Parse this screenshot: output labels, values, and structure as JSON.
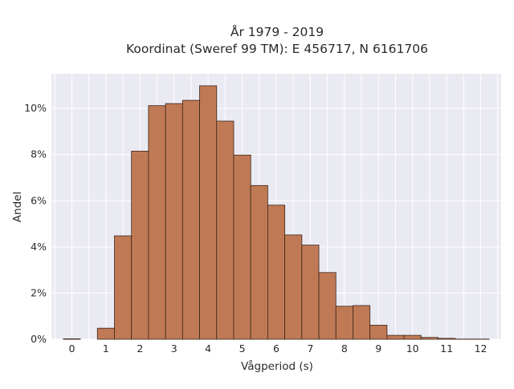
{
  "chart_data": {
    "type": "bar",
    "title": "År 1979 - 2019",
    "subtitle": "Koordinat (Sweref 99 TM): E 456717, N 6161706",
    "xlabel": "Vågperiod (s)",
    "ylabel": "Andel",
    "xlim": [
      -0.6,
      12.6
    ],
    "ylim": [
      0,
      0.115
    ],
    "x_ticks": [
      0,
      1,
      2,
      3,
      4,
      5,
      6,
      7,
      8,
      9,
      10,
      11,
      12
    ],
    "x_tick_labels": [
      "0",
      "1",
      "2",
      "3",
      "4",
      "5",
      "6",
      "7",
      "8",
      "9",
      "10",
      "11",
      "12"
    ],
    "y_ticks": [
      0,
      0.02,
      0.04,
      0.06,
      0.08,
      0.1
    ],
    "y_tick_labels": [
      "0%",
      "2%",
      "4%",
      "6%",
      "8%",
      "10%"
    ],
    "bin_width": 0.5,
    "bins": [
      {
        "x0": -0.25,
        "x1": 0.25,
        "value": 0.0002
      },
      {
        "x0": 0.25,
        "x1": 0.75,
        "value": 0.0
      },
      {
        "x0": 0.75,
        "x1": 1.25,
        "value": 0.0048
      },
      {
        "x0": 1.25,
        "x1": 1.75,
        "value": 0.0448
      },
      {
        "x0": 1.75,
        "x1": 2.25,
        "value": 0.0815
      },
      {
        "x0": 2.25,
        "x1": 2.75,
        "value": 0.1012
      },
      {
        "x0": 2.75,
        "x1": 3.25,
        "value": 0.1021
      },
      {
        "x0": 3.25,
        "x1": 3.75,
        "value": 0.1035
      },
      {
        "x0": 3.75,
        "x1": 4.25,
        "value": 0.1098
      },
      {
        "x0": 4.25,
        "x1": 4.75,
        "value": 0.0945
      },
      {
        "x0": 4.75,
        "x1": 5.25,
        "value": 0.0798
      },
      {
        "x0": 5.25,
        "x1": 5.75,
        "value": 0.0666
      },
      {
        "x0": 5.75,
        "x1": 6.25,
        "value": 0.0581
      },
      {
        "x0": 6.25,
        "x1": 6.75,
        "value": 0.0452
      },
      {
        "x0": 6.75,
        "x1": 7.25,
        "value": 0.0408
      },
      {
        "x0": 7.25,
        "x1": 7.75,
        "value": 0.0289
      },
      {
        "x0": 7.75,
        "x1": 8.25,
        "value": 0.0143
      },
      {
        "x0": 8.25,
        "x1": 8.75,
        "value": 0.0146
      },
      {
        "x0": 8.75,
        "x1": 9.25,
        "value": 0.0061
      },
      {
        "x0": 9.25,
        "x1": 9.75,
        "value": 0.0017
      },
      {
        "x0": 9.75,
        "x1": 10.25,
        "value": 0.0017
      },
      {
        "x0": 10.25,
        "x1": 10.75,
        "value": 0.0008
      },
      {
        "x0": 10.75,
        "x1": 11.25,
        "value": 0.0004
      },
      {
        "x0": 11.25,
        "x1": 11.75,
        "value": 0.0001
      },
      {
        "x0": 11.75,
        "x1": 12.25,
        "value": 0.0001
      }
    ],
    "grid": true,
    "colors": {
      "bar_fill": "#bf7a55",
      "bar_edge": "#3b241a",
      "plot_background": "#eaeaf2",
      "grid": "#ffffff"
    }
  }
}
